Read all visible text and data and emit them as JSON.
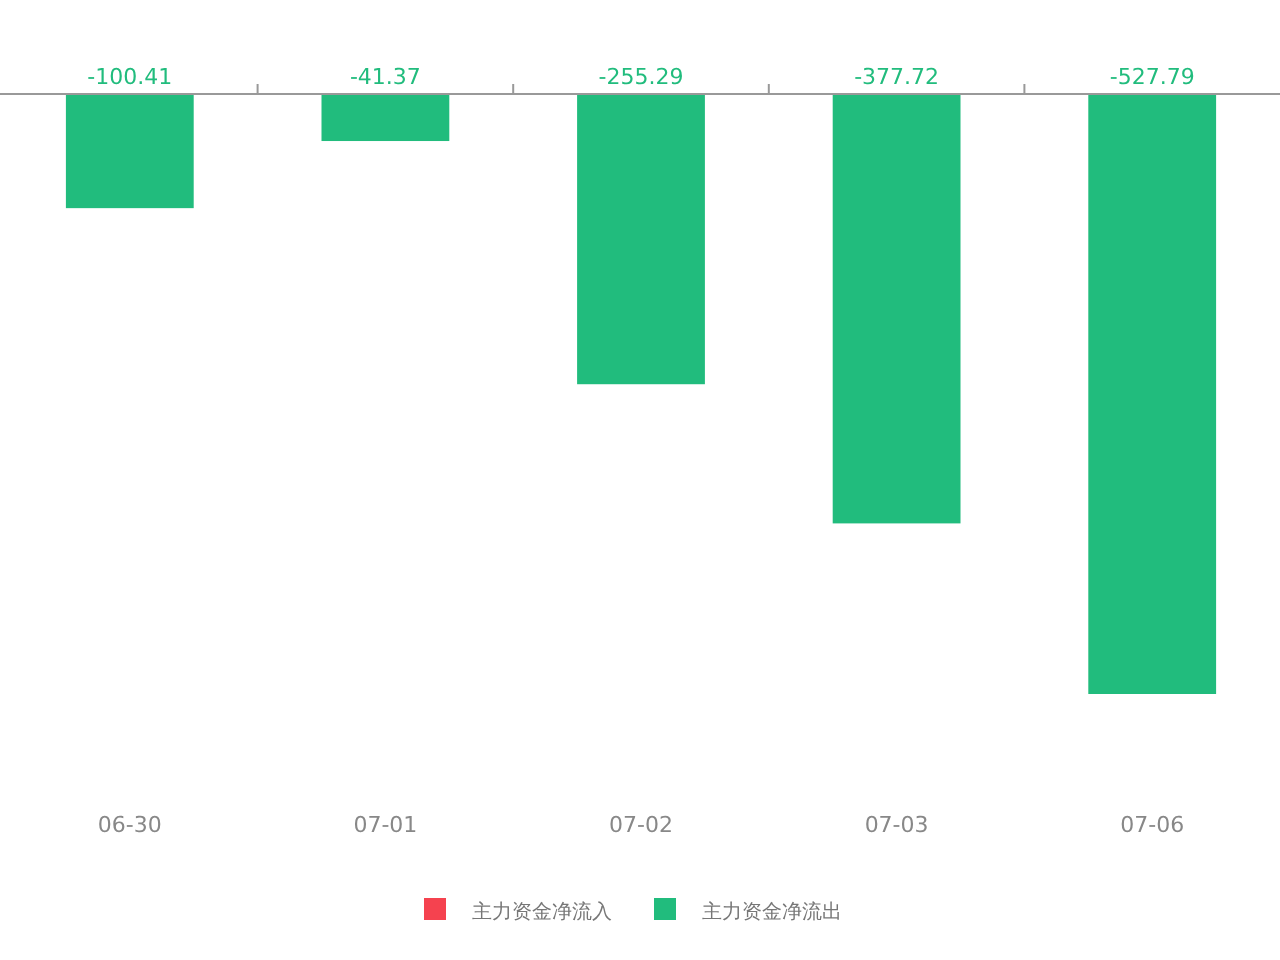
{
  "chart_data": {
    "type": "bar",
    "categories": [
      "06-30",
      "07-01",
      "07-02",
      "07-03",
      "07-06"
    ],
    "series": [
      {
        "name": "主力资金净流入",
        "color": "#f5424f",
        "values": [
          null,
          null,
          null,
          null,
          null
        ]
      },
      {
        "name": "主力资金净流出",
        "color": "#21bc7d",
        "values": [
          -100.41,
          -41.37,
          -255.29,
          -377.72,
          -527.79
        ]
      }
    ],
    "data_labels": true,
    "legend": "bottom"
  }
}
